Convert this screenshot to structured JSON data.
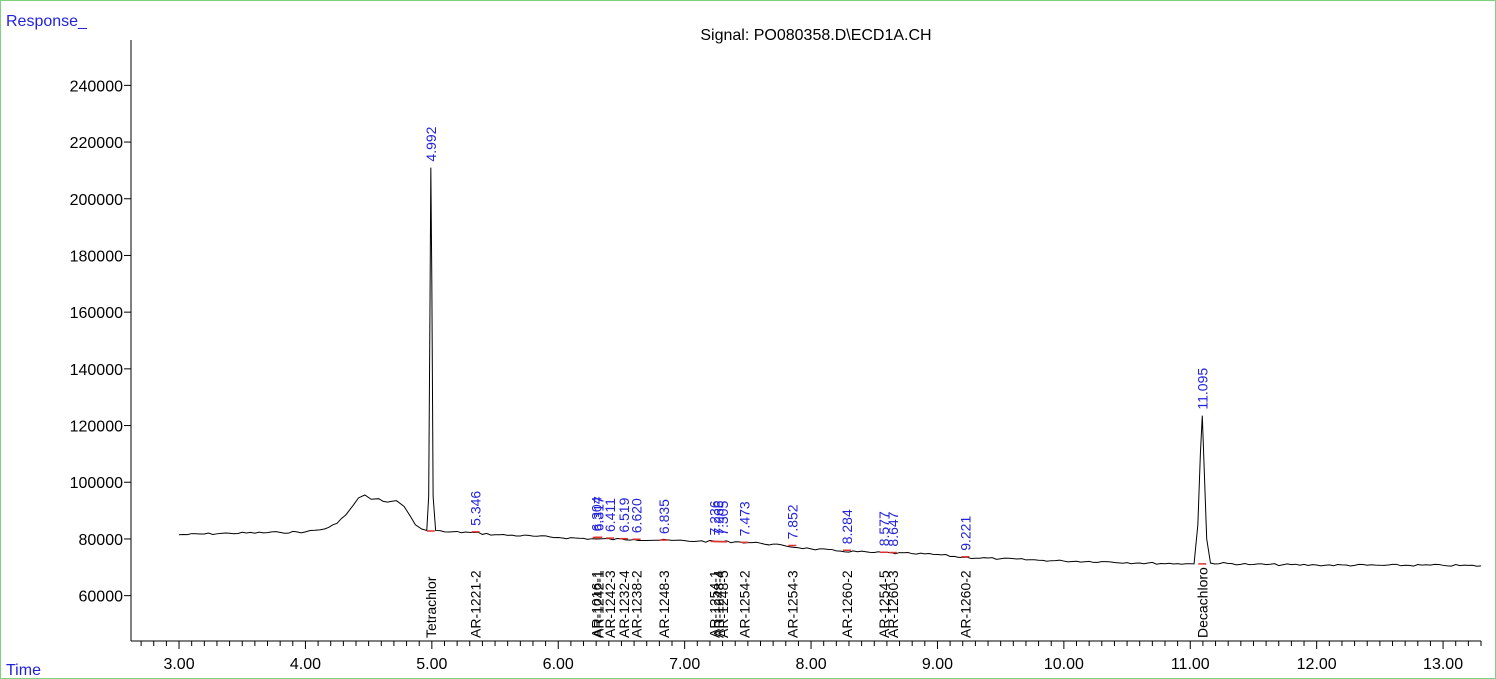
{
  "chart_data": {
    "type": "line",
    "title": "Signal: PO080358.D\\ECD1A.CH",
    "ylabel": "Response_",
    "xlabel": "Time",
    "xlim": [
      2.62,
      13.3
    ],
    "ylim": [
      44000,
      256000
    ],
    "yticks": [
      "60000",
      "80000",
      "100000",
      "120000",
      "140000",
      "160000",
      "180000",
      "200000",
      "220000",
      "240000"
    ],
    "yticks_values": [
      60000,
      80000,
      100000,
      120000,
      140000,
      160000,
      180000,
      200000,
      220000,
      240000
    ],
    "xticks": [
      "3.00",
      "4.00",
      "5.00",
      "6.00",
      "7.00",
      "8.00",
      "9.00",
      "10.00",
      "11.00",
      "12.00",
      "13.00"
    ],
    "xticks_values": [
      3,
      4,
      5,
      6,
      7,
      8,
      9,
      10,
      11,
      12,
      13
    ],
    "grid": false,
    "series": [
      {
        "x": [
          3.0,
          3.4,
          3.8,
          4.0,
          4.15,
          4.25,
          4.32,
          4.38,
          4.42,
          4.47,
          4.52,
          4.58,
          4.65,
          4.72,
          4.78,
          4.83,
          4.87,
          4.92,
          4.96,
          4.975,
          4.985,
          4.992,
          5.0,
          5.01,
          5.03,
          5.1,
          5.3,
          5.5,
          5.8,
          6.0,
          6.3,
          6.6,
          6.9,
          7.1,
          7.4,
          7.6,
          7.8,
          8.0,
          8.2,
          8.5,
          8.8,
          9.0,
          9.2,
          9.5,
          9.8,
          10.0,
          10.3,
          10.6,
          10.9,
          11.03,
          11.06,
          11.08,
          11.095,
          11.11,
          11.13,
          11.16,
          11.5,
          12.0,
          12.5,
          13.0,
          13.3
        ],
        "y": [
          81500,
          82000,
          82300,
          82500,
          83500,
          85500,
          88500,
          92000,
          94500,
          95500,
          94000,
          94200,
          93000,
          93500,
          91500,
          88000,
          85000,
          83500,
          83000,
          95000,
          160000,
          211000,
          170000,
          95000,
          83000,
          82500,
          82300,
          81500,
          81000,
          80500,
          80000,
          79800,
          79500,
          79200,
          79000,
          78500,
          77500,
          76500,
          75800,
          75200,
          74800,
          74500,
          73500,
          73000,
          72500,
          72200,
          72000,
          71500,
          71300,
          71200,
          85000,
          110000,
          123500,
          105000,
          80000,
          71500,
          71000,
          70800,
          70700,
          70700,
          70500
        ]
      }
    ],
    "peaks": [
      {
        "time": "4.992",
        "x": 4.992,
        "y": 211000,
        "compound": "Tetrachlor"
      },
      {
        "time": "5.346",
        "x": 5.346,
        "y": 82500,
        "compound": "AR-1221-2"
      },
      {
        "time": "6.304",
        "x": 6.304,
        "y": 80500,
        "compound": "AR-1016-1"
      },
      {
        "time": "6.317",
        "x": 6.317,
        "y": 80600,
        "compound": "AR-1242-1"
      },
      {
        "time": "6.411",
        "x": 6.411,
        "y": 80300,
        "compound": "AR-1242-3"
      },
      {
        "time": "6.519",
        "x": 6.519,
        "y": 80100,
        "compound": "AR-1232-4"
      },
      {
        "time": "6.620",
        "x": 6.62,
        "y": 79900,
        "compound": "AR-1238-2"
      },
      {
        "time": "6.835",
        "x": 6.835,
        "y": 79600,
        "compound": "AR-1248-3"
      },
      {
        "time": "7.236",
        "x": 7.236,
        "y": 79100,
        "compound": "AR-1254-1"
      },
      {
        "time": "7.266",
        "x": 7.266,
        "y": 79100,
        "compound": "AR-1248-4"
      },
      {
        "time": "7.305",
        "x": 7.305,
        "y": 79000,
        "compound": "AR-1248-5"
      },
      {
        "time": "7.473",
        "x": 7.473,
        "y": 78800,
        "compound": "AR-1254-2"
      },
      {
        "time": "7.852",
        "x": 7.852,
        "y": 77700,
        "compound": "AR-1254-3"
      },
      {
        "time": "8.284",
        "x": 8.284,
        "y": 76000,
        "compound": "AR-1260-2"
      },
      {
        "time": "8.577",
        "x": 8.577,
        "y": 75300,
        "compound": "AR-1254-5"
      },
      {
        "time": "8.647",
        "x": 8.647,
        "y": 75200,
        "compound": "AR-1260-3"
      },
      {
        "time": "9.221",
        "x": 9.221,
        "y": 73700,
        "compound": "AR-1260-2"
      },
      {
        "time": "11.095",
        "x": 11.095,
        "y": 123500,
        "compound": "Decachloro"
      }
    ]
  }
}
